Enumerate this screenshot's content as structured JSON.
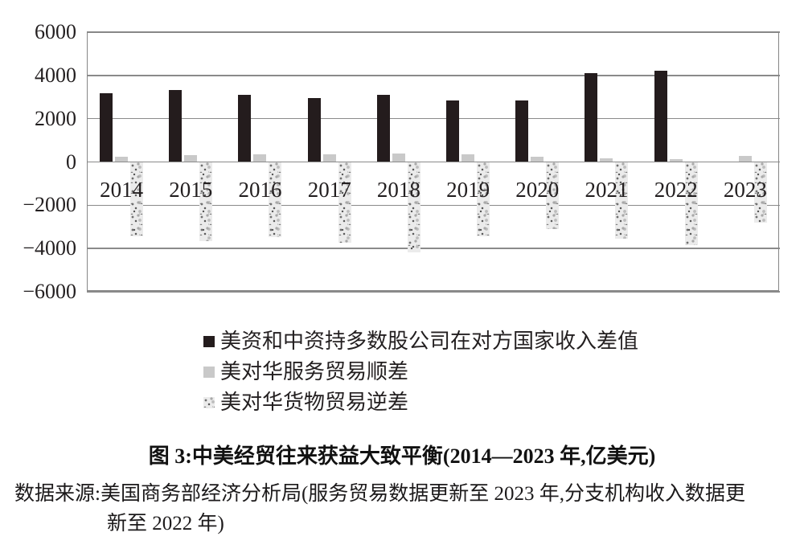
{
  "figure": {
    "title": "图 3:中美经贸往来获益大致平衡(2014—2023 年,亿美元)",
    "source_line1": "数据来源:美国商务部经济分析局(服务贸易数据更新至 2023 年,分支机构收入数据更",
    "source_line2": "新至 2022 年)"
  },
  "chart_data": {
    "type": "bar",
    "title": "图 3:中美经贸往来获益大致平衡(2014—2023 年,亿美元)",
    "categories": [
      "2014",
      "2015",
      "2016",
      "2017",
      "2018",
      "2019",
      "2020",
      "2021",
      "2022",
      "2023"
    ],
    "series": [
      {
        "name": "美资和中资持多数股公司在对方国家收入差值",
        "style": "solid-black",
        "color": "#241c1d",
        "values": [
          3160,
          3340,
          3100,
          2960,
          3100,
          2830,
          2860,
          4100,
          4200,
          null
        ]
      },
      {
        "name": "美对华服务贸易顺差",
        "style": "solid-gray",
        "color": "#c9c9c9",
        "values": [
          250,
          300,
          340,
          370,
          380,
          360,
          230,
          160,
          130,
          270
        ]
      },
      {
        "name": "美对华货物贸易逆差",
        "style": "speckled",
        "color": "#ebebeb",
        "values": [
          -3440,
          -3670,
          -3470,
          -3750,
          -4180,
          -3420,
          -3100,
          -3530,
          -3830,
          -2790
        ]
      }
    ],
    "xlabel": "",
    "ylabel": "",
    "ylim": [
      -6000,
      6000
    ],
    "y_ticks": [
      6000,
      4000,
      2000,
      0,
      -2000,
      -4000,
      -6000
    ],
    "grid": true,
    "legend_position": "bottom-left"
  }
}
